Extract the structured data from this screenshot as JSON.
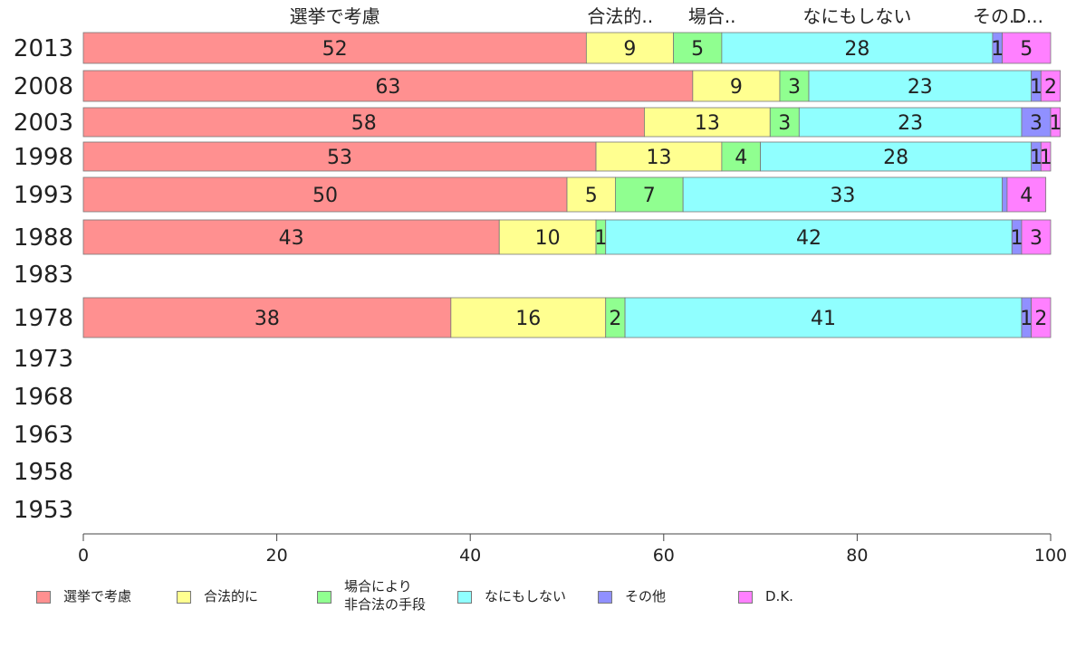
{
  "chart_data": {
    "type": "bar",
    "orientation": "horizontal",
    "stacked": true,
    "categories": [
      "2013",
      "2008",
      "2003",
      "1998",
      "1993",
      "1988",
      "1983",
      "1978",
      "1973",
      "1968",
      "1963",
      "1958",
      "1953"
    ],
    "series": [
      {
        "name": "選挙で考慮",
        "color": "#ff9090",
        "values": [
          52,
          63,
          58,
          53,
          50,
          43,
          null,
          38,
          null,
          null,
          null,
          null,
          null
        ]
      },
      {
        "name": "合法的に",
        "color": "#ffff90",
        "values": [
          9,
          9,
          13,
          13,
          5,
          10,
          null,
          16,
          null,
          null,
          null,
          null,
          null
        ]
      },
      {
        "name": "場合により非合法の手段",
        "color": "#90ff90",
        "values": [
          5,
          3,
          3,
          4,
          7,
          1,
          null,
          2,
          null,
          null,
          null,
          null,
          null
        ]
      },
      {
        "name": "なにもしない",
        "color": "#90ffff",
        "values": [
          28,
          23,
          23,
          28,
          33,
          42,
          null,
          41,
          null,
          null,
          null,
          null,
          null
        ]
      },
      {
        "name": "その他",
        "color": "#9090ff",
        "values": [
          1,
          1,
          3,
          1,
          0.5,
          1,
          null,
          1,
          null,
          null,
          null,
          null,
          null
        ]
      },
      {
        "name": "D.K.",
        "color": "#ff80ff",
        "values": [
          5,
          2,
          1,
          1,
          4,
          3,
          null,
          2,
          null,
          null,
          null,
          null,
          null
        ]
      }
    ],
    "segment_labels": [
      [
        "52",
        "9",
        "5",
        "28",
        "1",
        "5"
      ],
      [
        "63",
        "9",
        "3",
        "23",
        "1",
        "2"
      ],
      [
        "58",
        "13",
        "3",
        "23",
        "3",
        "1"
      ],
      [
        "53",
        "13",
        "4",
        "28",
        "1",
        "1"
      ],
      [
        "50",
        "5",
        "7",
        "33",
        "",
        "4"
      ],
      [
        "43",
        "10",
        "1",
        "42",
        "1",
        "3"
      ],
      [
        "",
        "",
        "",
        "",
        "",
        ""
      ],
      [
        "38",
        "16",
        "2",
        "41",
        "1",
        "2"
      ],
      [
        "",
        "",
        "",
        "",
        "",
        ""
      ],
      [
        "",
        "",
        "",
        "",
        "",
        ""
      ],
      [
        "",
        "",
        "",
        "",
        "",
        ""
      ],
      [
        "",
        "",
        "",
        "",
        "",
        ""
      ],
      [
        "",
        "",
        "",
        "",
        "",
        ""
      ]
    ],
    "top_labels": [
      "選挙で考慮",
      "合法的..",
      "場合..",
      "なにもしない",
      "その..",
      "D..."
    ],
    "xlim": [
      0,
      100
    ],
    "xticks": [
      "0",
      "20",
      "40",
      "60",
      "80",
      "100"
    ],
    "legend_position": "bottom",
    "title": "",
    "xlabel": "",
    "ylabel": ""
  },
  "legend": [
    {
      "label": "選挙で考慮",
      "color": "#ff9090"
    },
    {
      "label": "合法的に",
      "color": "#ffff90"
    },
    {
      "label_line1": "場合により",
      "label_line2": "非合法の手段",
      "color": "#90ff90"
    },
    {
      "label": "なにもしない",
      "color": "#90ffff"
    },
    {
      "label": "その他",
      "color": "#9090ff"
    },
    {
      "label": "D.K.",
      "color": "#ff80ff"
    }
  ]
}
